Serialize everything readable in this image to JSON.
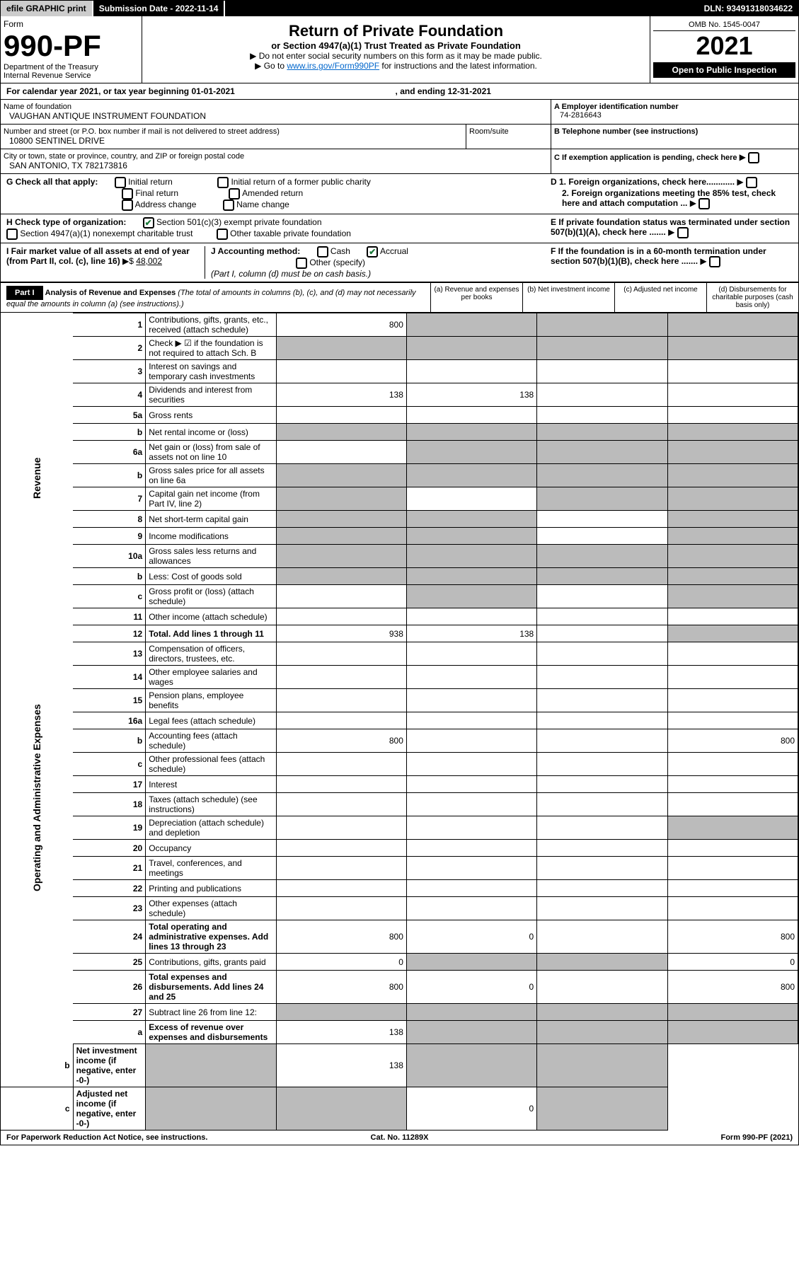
{
  "top": {
    "efile": "efile GRAPHIC print",
    "subdate_label": "Submission Date - ",
    "subdate": "2022-11-14",
    "dln_label": "DLN: ",
    "dln": "93491318034622"
  },
  "header": {
    "form_label": "Form",
    "form_num": "990-PF",
    "dept": "Department of the Treasury\nInternal Revenue Service",
    "title": "Return of Private Foundation",
    "subtitle": "or Section 4947(a)(1) Trust Treated as Private Foundation",
    "line1": "▶ Do not enter social security numbers on this form as it may be made public.",
    "line2_pre": "▶ Go to ",
    "line2_link": "www.irs.gov/Form990PF",
    "line2_post": " for instructions and the latest information.",
    "omb": "OMB No. 1545-0047",
    "year": "2021",
    "inspection": "Open to Public Inspection"
  },
  "calendar": {
    "text": "For calendar year 2021, or tax year beginning ",
    "begin": "01-01-2021",
    "mid": ", and ending ",
    "end": "12-31-2021"
  },
  "name": {
    "label": "Name of foundation",
    "value": "VAUGHAN ANTIQUE INSTRUMENT FOUNDATION",
    "addr_label": "Number and street (or P.O. box number if mail is not delivered to street address)",
    "addr": "10800 SENTINEL DRIVE",
    "room_label": "Room/suite",
    "city_label": "City or town, state or province, country, and ZIP or foreign postal code",
    "city": "SAN ANTONIO, TX  782173816"
  },
  "ein": {
    "label_a": "A Employer identification number",
    "value_a": "74-2816643",
    "label_b": "B Telephone number (see instructions)",
    "label_c": "C If exemption application is pending, check here"
  },
  "sectionG": {
    "label": "G Check all that apply:",
    "opts": [
      "Initial return",
      "Final return",
      "Address change",
      "Initial return of a former public charity",
      "Amended return",
      "Name change"
    ]
  },
  "sectionD": {
    "d1": "D 1. Foreign organizations, check here............",
    "d2": "2. Foreign organizations meeting the 85% test, check here and attach computation ..."
  },
  "sectionH": {
    "label": "H Check type of organization:",
    "opt1": "Section 501(c)(3) exempt private foundation",
    "opt2": "Section 4947(a)(1) nonexempt charitable trust",
    "opt3": "Other taxable private foundation"
  },
  "sectionE": "E  If private foundation status was terminated under section 507(b)(1)(A), check here .......",
  "sectionI": {
    "label": "I Fair market value of all assets at end of year (from Part II, col. (c), line 16)",
    "value": "48,002"
  },
  "sectionJ": {
    "label": "J Accounting method:",
    "cash": "Cash",
    "accrual": "Accrual",
    "other": "Other (specify)",
    "note": "(Part I, column (d) must be on cash basis.)"
  },
  "sectionF": "F  If the foundation is in a 60-month termination under section 507(b)(1)(B), check here .......",
  "part1": {
    "label": "Part I",
    "title": "Analysis of Revenue and Expenses",
    "note": "(The total of amounts in columns (b), (c), and (d) may not necessarily equal the amounts in column (a) (see instructions).)",
    "col_a": "(a) Revenue and expenses per books",
    "col_b": "(b) Net investment income",
    "col_c": "(c) Adjusted net income",
    "col_d": "(d) Disbursements for charitable purposes (cash basis only)"
  },
  "sidelabels": {
    "revenue": "Revenue",
    "opex": "Operating and Administrative Expenses"
  },
  "rows": [
    {
      "n": "1",
      "d": "Contributions, gifts, grants, etc., received (attach schedule)",
      "a": "800",
      "shade": [
        "b",
        "c",
        "d"
      ]
    },
    {
      "n": "2",
      "d": "Check ▶ ☑ if the foundation is not required to attach Sch. B",
      "shade": [
        "a",
        "b",
        "c",
        "d"
      ]
    },
    {
      "n": "3",
      "d": "Interest on savings and temporary cash investments"
    },
    {
      "n": "4",
      "d": "Dividends and interest from securities",
      "a": "138",
      "b": "138"
    },
    {
      "n": "5a",
      "d": "Gross rents"
    },
    {
      "n": "b",
      "d": "Net rental income or (loss)",
      "shade": [
        "a",
        "b",
        "c",
        "d"
      ]
    },
    {
      "n": "6a",
      "d": "Net gain or (loss) from sale of assets not on line 10",
      "shade": [
        "b",
        "c",
        "d"
      ]
    },
    {
      "n": "b",
      "d": "Gross sales price for all assets on line 6a",
      "shade": [
        "a",
        "b",
        "c",
        "d"
      ]
    },
    {
      "n": "7",
      "d": "Capital gain net income (from Part IV, line 2)",
      "shade": [
        "a",
        "c",
        "d"
      ]
    },
    {
      "n": "8",
      "d": "Net short-term capital gain",
      "shade": [
        "a",
        "b",
        "d"
      ]
    },
    {
      "n": "9",
      "d": "Income modifications",
      "shade": [
        "a",
        "b",
        "d"
      ]
    },
    {
      "n": "10a",
      "d": "Gross sales less returns and allowances",
      "shade": [
        "a",
        "b",
        "c",
        "d"
      ]
    },
    {
      "n": "b",
      "d": "Less: Cost of goods sold",
      "shade": [
        "a",
        "b",
        "c",
        "d"
      ]
    },
    {
      "n": "c",
      "d": "Gross profit or (loss) (attach schedule)",
      "shade": [
        "b",
        "d"
      ]
    },
    {
      "n": "11",
      "d": "Other income (attach schedule)"
    },
    {
      "n": "12",
      "d": "Total. Add lines 1 through 11",
      "bold": true,
      "a": "938",
      "b": "138",
      "shade": [
        "d"
      ]
    },
    {
      "n": "13",
      "d": "Compensation of officers, directors, trustees, etc."
    },
    {
      "n": "14",
      "d": "Other employee salaries and wages"
    },
    {
      "n": "15",
      "d": "Pension plans, employee benefits"
    },
    {
      "n": "16a",
      "d": "Legal fees (attach schedule)"
    },
    {
      "n": "b",
      "d": "Accounting fees (attach schedule)",
      "a": "800",
      "dd": "800"
    },
    {
      "n": "c",
      "d": "Other professional fees (attach schedule)"
    },
    {
      "n": "17",
      "d": "Interest"
    },
    {
      "n": "18",
      "d": "Taxes (attach schedule) (see instructions)"
    },
    {
      "n": "19",
      "d": "Depreciation (attach schedule) and depletion",
      "shade": [
        "d"
      ]
    },
    {
      "n": "20",
      "d": "Occupancy"
    },
    {
      "n": "21",
      "d": "Travel, conferences, and meetings"
    },
    {
      "n": "22",
      "d": "Printing and publications"
    },
    {
      "n": "23",
      "d": "Other expenses (attach schedule)"
    },
    {
      "n": "24",
      "d": "Total operating and administrative expenses. Add lines 13 through 23",
      "bold": true,
      "a": "800",
      "b": "0",
      "dd": "800"
    },
    {
      "n": "25",
      "d": "Contributions, gifts, grants paid",
      "a": "0",
      "shade": [
        "b",
        "c"
      ],
      "dd": "0"
    },
    {
      "n": "26",
      "d": "Total expenses and disbursements. Add lines 24 and 25",
      "bold": true,
      "a": "800",
      "b": "0",
      "dd": "800"
    },
    {
      "n": "27",
      "d": "Subtract line 26 from line 12:",
      "shade": [
        "a",
        "b",
        "c",
        "d"
      ]
    },
    {
      "n": "a",
      "d": "Excess of revenue over expenses and disbursements",
      "bold": true,
      "a": "138",
      "shade": [
        "b",
        "c",
        "d"
      ]
    },
    {
      "n": "b",
      "d": "Net investment income (if negative, enter -0-)",
      "bold": true,
      "shade": [
        "a"
      ],
      "b": "138",
      "shade2": [
        "c",
        "d"
      ]
    },
    {
      "n": "c",
      "d": "Adjusted net income (if negative, enter -0-)",
      "bold": true,
      "shade": [
        "a",
        "b"
      ],
      "c": "0",
      "shade2": [
        "d"
      ]
    }
  ],
  "footer": {
    "left": "For Paperwork Reduction Act Notice, see instructions.",
    "mid": "Cat. No. 11289X",
    "right": "Form 990-PF (2021)"
  }
}
